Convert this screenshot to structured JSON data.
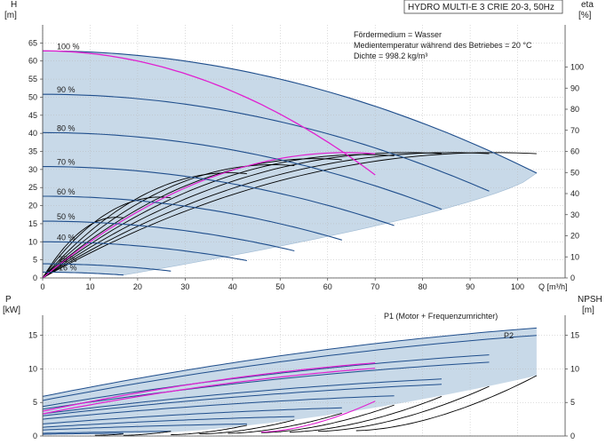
{
  "chart_data": [
    {
      "type": "line",
      "title": "HYDRO MULTI-E 3 CRIE 20-3, 50Hz",
      "notes": [
        "Fördermedium = Wasser",
        "Medientemperatur während des Betriebes = 20 °C",
        "Dichte = 998.2 kg/m³"
      ],
      "xlabel": "Q [m³/h]",
      "xlim": [
        0,
        110
      ],
      "x_ticks": [
        "0",
        "10",
        "20",
        "30",
        "40",
        "50",
        "60",
        "70",
        "80",
        "90",
        "100"
      ],
      "ylabel_left": {
        "name": "H",
        "unit": "[m]"
      },
      "ylim_left": [
        0,
        70
      ],
      "y_ticks_left": [
        "0",
        "5",
        "10",
        "15",
        "20",
        "25",
        "30",
        "35",
        "40",
        "45",
        "50",
        "55",
        "60",
        "65"
      ],
      "ylabel_right": {
        "name": "eta",
        "unit": "[%]"
      },
      "ylim_right": [
        0,
        120
      ],
      "y_ticks_right": [
        "0",
        "10",
        "20",
        "30",
        "40",
        "50",
        "60",
        "70",
        "80",
        "90",
        "100"
      ],
      "grid": true,
      "speed_labels": [
        {
          "text": "100 %",
          "h": 62.8
        },
        {
          "text": "90 %",
          "h": 50.8
        },
        {
          "text": "80 %",
          "h": 40.2
        },
        {
          "text": "70 %",
          "h": 30.8
        },
        {
          "text": "60 %",
          "h": 22.6
        },
        {
          "text": "50 %",
          "h": 15.7
        },
        {
          "text": "40 %",
          "h": 10
        },
        {
          "text": "25 %",
          "h": 3.9
        },
        {
          "text": "16 %",
          "h": 1.6
        }
      ],
      "speed_curves": [
        {
          "name": "100 %",
          "q_max": 104,
          "h_max": 62.8,
          "h_end": 29,
          "color": "#1f4e8c"
        },
        {
          "name": "90 %",
          "q_max": 94,
          "h_max": 50.8,
          "h_end": 24,
          "color": "#1f4e8c"
        },
        {
          "name": "80 %",
          "q_max": 84,
          "h_max": 40.2,
          "h_end": 19,
          "color": "#1f4e8c"
        },
        {
          "name": "70 %",
          "q_max": 74,
          "h_max": 30.8,
          "h_end": 14.5,
          "color": "#1f4e8c"
        },
        {
          "name": "60 %",
          "q_max": 63,
          "h_max": 22.6,
          "h_end": 10.5,
          "color": "#1f4e8c"
        },
        {
          "name": "50 %",
          "q_max": 53,
          "h_max": 15.7,
          "h_end": 7.5,
          "color": "#1f4e8c"
        },
        {
          "name": "40 %",
          "q_max": 43,
          "h_max": 10,
          "h_end": 4.8,
          "color": "#1f4e8c"
        },
        {
          "name": "25 %",
          "q_max": 27,
          "h_max": 3.9,
          "h_end": 1.9,
          "color": "#1f4e8c"
        },
        {
          "name": "16 %",
          "q_max": 17,
          "h_max": 1.6,
          "h_end": 0.8,
          "color": "#1f4e8c"
        }
      ],
      "highlight_curve": {
        "q_max": 70,
        "h_max": 62.8,
        "h_end": 28.5,
        "color": "#e020d0"
      },
      "eta_curves": [
        {
          "q_max": 104,
          "peak": 62,
          "color": "#000000"
        },
        {
          "q_max": 94,
          "peak": 62,
          "color": "#000000"
        },
        {
          "q_max": 84,
          "peak": 62,
          "color": "#000000"
        },
        {
          "q_max": 74,
          "peak": 61,
          "color": "#000000"
        },
        {
          "q_max": 63,
          "peak": 59,
          "color": "#000000"
        },
        {
          "q_max": 53,
          "peak": 56,
          "color": "#000000"
        },
        {
          "q_max": 43,
          "peak": 52,
          "color": "#000000"
        },
        {
          "q_max": 27,
          "peak": 40,
          "color": "#000000"
        },
        {
          "q_max": 17,
          "peak": 30,
          "color": "#000000"
        }
      ],
      "eta_highlight": {
        "q_max": 70,
        "peak": 62,
        "color": "#e020d0"
      },
      "colors": {
        "area": "#c8d9e8",
        "area_edge": "#9fbad3",
        "grid": "#b8b8b8",
        "axis": "#444444"
      }
    },
    {
      "type": "line",
      "xlim": [
        0,
        110
      ],
      "ylabel_left": {
        "name": "P",
        "unit": "[kW]"
      },
      "ylim_left": [
        0,
        18
      ],
      "y_ticks_left": [
        "0",
        "5",
        "10",
        "15"
      ],
      "ylabel_right": {
        "name": "NPSH",
        "unit": "[m]"
      },
      "ylim_right": [
        0,
        18
      ],
      "y_ticks_right": [
        "0",
        "5",
        "10",
        "15"
      ],
      "grid": true,
      "series_labels": [
        "P1 (Motor + Frequenzumrichter)",
        "P2"
      ],
      "power_curves": [
        {
          "name": "P1",
          "q_max": 104,
          "p0": 5.9,
          "p_end": 16.1
        },
        {
          "name": "P2",
          "q_max": 104,
          "p0": 5.3,
          "p_end": 15.0
        },
        {
          "q_max": 94,
          "p0": 4.4,
          "p_end": 12.1
        },
        {
          "q_max": 94,
          "p0": 4.0,
          "p_end": 11.0
        },
        {
          "q_max": 84,
          "p0": 3.3,
          "p_end": 8.5
        },
        {
          "q_max": 84,
          "p0": 3.0,
          "p_end": 7.7
        },
        {
          "q_max": 74,
          "p0": 2.5,
          "p_end": 6.0
        },
        {
          "q_max": 63,
          "p0": 1.8,
          "p_end": 4.2
        },
        {
          "q_max": 53,
          "p0": 1.3,
          "p_end": 2.9
        },
        {
          "q_max": 43,
          "p0": 0.9,
          "p_end": 1.8
        },
        {
          "q_max": 27,
          "p0": 0.4,
          "p_end": 0.7
        },
        {
          "q_max": 17,
          "p0": 0.25,
          "p_end": 0.4
        }
      ],
      "power_highlight": [
        {
          "q_max": 70,
          "p0": 3.7,
          "p_end": 10.9
        },
        {
          "q_max": 70,
          "p0": 3.3,
          "p_end": 10.1
        }
      ],
      "npsh_curves": [
        {
          "q_start": 66,
          "q_end": 104,
          "n_start": 0.8,
          "n_end": 9.0
        },
        {
          "q_start": 58,
          "q_end": 94,
          "n_start": 0.7,
          "n_end": 7.4
        },
        {
          "q_start": 52,
          "q_end": 84,
          "n_start": 0.6,
          "n_end": 5.9
        },
        {
          "q_start": 46,
          "q_end": 74,
          "n_start": 0.5,
          "n_end": 4.6
        },
        {
          "q_start": 39,
          "q_end": 63,
          "n_start": 0.4,
          "n_end": 3.4
        },
        {
          "q_start": 33,
          "q_end": 53,
          "n_start": 0.3,
          "n_end": 2.4
        },
        {
          "q_start": 27,
          "q_end": 43,
          "n_start": 0.2,
          "n_end": 1.6
        },
        {
          "q_start": 17,
          "q_end": 27,
          "n_start": 0.1,
          "n_end": 0.7
        },
        {
          "q_start": 11,
          "q_end": 17,
          "n_start": 0.1,
          "n_end": 0.3
        }
      ],
      "npsh_highlight": {
        "q_start": 46,
        "q_end": 70,
        "n_start": 0.6,
        "n_end": 5.2
      },
      "colors": {
        "area": "#c8d9e8",
        "line": "#1f4e8c",
        "npsh": "#000000",
        "highlight": "#e020d0"
      }
    }
  ]
}
